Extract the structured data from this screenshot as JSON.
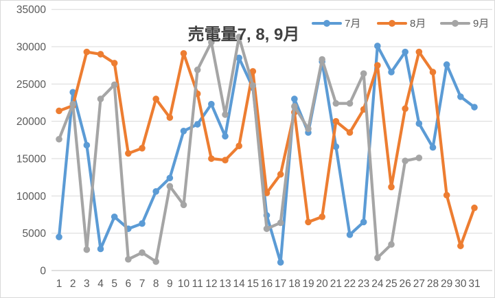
{
  "frame": {
    "background": "#FFFFFF",
    "border_color": "#D9D9D9"
  },
  "chart_data": {
    "type": "line",
    "title": "売電量7, 8, 9月",
    "xlabel": "",
    "ylabel": "",
    "x_categories": [
      1,
      2,
      3,
      4,
      5,
      6,
      7,
      8,
      9,
      10,
      11,
      12,
      13,
      14,
      15,
      16,
      17,
      18,
      19,
      20,
      21,
      22,
      23,
      24,
      25,
      26,
      27,
      28,
      29,
      30,
      31
    ],
    "y_axis": {
      "min": 0,
      "max": 35000,
      "step": 5000,
      "tick_labels": [
        "0",
        "5000",
        "10000",
        "15000",
        "20000",
        "25000",
        "30000",
        "35000"
      ]
    },
    "grid": true,
    "legend_position": "top, inline right of title",
    "series": [
      {
        "name": "7月",
        "color": "#5B9BD5",
        "values": [
          4500,
          23900,
          16800,
          2900,
          7200,
          5600,
          6300,
          10600,
          12400,
          18700,
          19600,
          22300,
          18000,
          28500,
          24500,
          7400,
          1100,
          23000,
          18500,
          28000,
          16600,
          4800,
          6500,
          30100,
          26600,
          29300,
          19700,
          16500,
          27600,
          23300,
          21900
        ]
      },
      {
        "name": "8月",
        "color": "#ED7D31",
        "values": [
          21400,
          22100,
          29300,
          29000,
          27800,
          15700,
          16400,
          23000,
          20500,
          29100,
          23700,
          15000,
          14800,
          16700,
          26700,
          10400,
          12900,
          21200,
          6500,
          7200,
          20000,
          18500,
          21600,
          27500,
          11200,
          21700,
          29300,
          26600,
          10100,
          3300,
          8400
        ]
      },
      {
        "name": "9月",
        "color": "#A5A5A5",
        "values": [
          17600,
          22300,
          2800,
          23000,
          24900,
          1500,
          2400,
          1200,
          11300,
          8800,
          26900,
          30600,
          20900,
          31300,
          24800,
          5600,
          6400,
          22000,
          19000,
          28300,
          22400,
          22400,
          26400,
          1700,
          3500,
          14700,
          15100,
          null,
          null,
          null,
          null
        ]
      }
    ],
    "style": {
      "gridline_color": "#D9D9D9",
      "axis_line_color": "#BFBFBF",
      "tick_label_color": "#595959",
      "title_color": "#404040",
      "legend_text_color": "#595959",
      "line_width": 4.2,
      "marker_radius": 4.8
    }
  }
}
